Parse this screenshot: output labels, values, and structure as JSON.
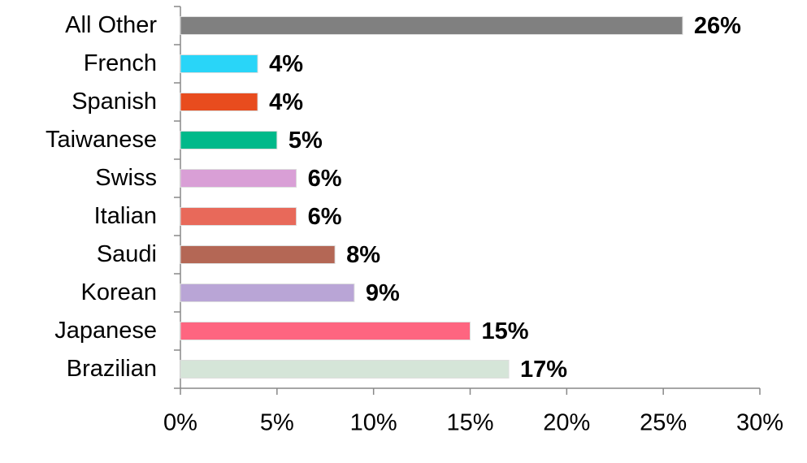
{
  "chart_data": {
    "type": "hbar",
    "categories": [
      "All Other",
      "French",
      "Spanish",
      "Taiwanese",
      "Swiss",
      "Italian",
      "Saudi",
      "Korean",
      "Japanese",
      "Brazilian"
    ],
    "values": [
      26,
      4,
      4,
      5,
      6,
      6,
      8,
      9,
      15,
      17
    ],
    "value_labels": [
      "26%",
      "4%",
      "4%",
      "5%",
      "6%",
      "6%",
      "8%",
      "9%",
      "15%",
      "17%"
    ],
    "colors": [
      "#808080",
      "#29d5f8",
      "#e84c1e",
      "#00b98a",
      "#d99fd6",
      "#e8695a",
      "#b46755",
      "#b9a5d6",
      "#fe6580",
      "#d5e5d8"
    ],
    "xlim": [
      0,
      30
    ],
    "xticks": [
      {
        "value": 0,
        "label": "0%"
      },
      {
        "value": 5,
        "label": "5%"
      },
      {
        "value": 10,
        "label": "10%"
      },
      {
        "value": 15,
        "label": "15%"
      },
      {
        "value": 20,
        "label": "20%"
      },
      {
        "value": 25,
        "label": "25%"
      },
      {
        "value": 30,
        "label": "30%"
      }
    ],
    "grid": false
  }
}
